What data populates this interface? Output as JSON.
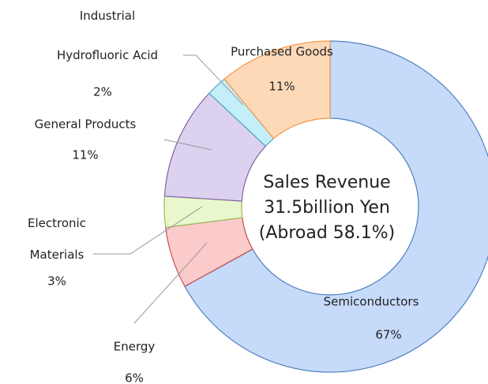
{
  "chart_data": {
    "type": "donut",
    "categories": [
      "Semiconductors",
      "Energy",
      "Electronic Materials",
      "General Products",
      "Industrial Hydrofluoric Acid",
      "Purchased Goods"
    ],
    "values": [
      67,
      6,
      3,
      11,
      2,
      11
    ],
    "value_labels": [
      "67%",
      "6%",
      "3%",
      "11%",
      "2%",
      "11%"
    ],
    "colors": [
      "#c6dafa",
      "#fbcaca",
      "#e9f7cc",
      "#ddd1f0",
      "#c4eef8",
      "#fdd9b8"
    ],
    "stroke_colors": [
      "#4f81bd",
      "#c0504d",
      "#9bbb59",
      "#8064a2",
      "#4bacc6",
      "#f79646"
    ],
    "center_text": [
      "Sales Revenue",
      "31.5billion Yen",
      "(Abroad 58.1%)"
    ]
  }
}
